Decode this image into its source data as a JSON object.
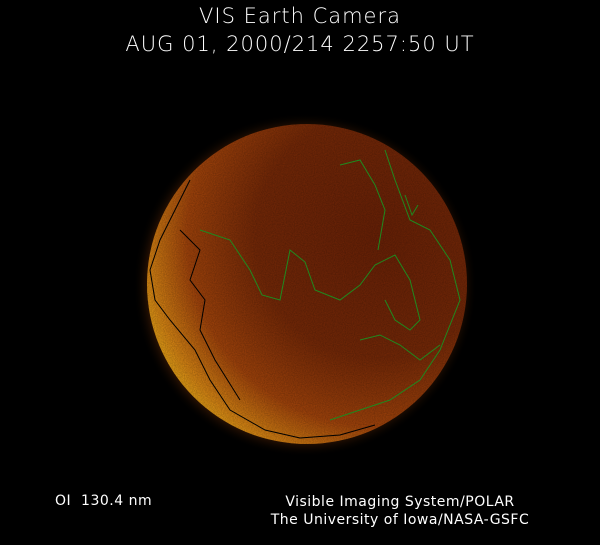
{
  "title": "VIS Earth Camera",
  "timestamp": "AUG 01, 2000/214 2257:50 UT",
  "band": "OI  130.4 nm",
  "credit_line1": "Visible Imaging System/POLAR",
  "credit_line2": "The University of Iowa/NASA-GSFC",
  "colors": {
    "background": "#000000",
    "disk_dark": "#5a1a04",
    "disk_mid": "#a8400a",
    "crescent": "#ffd21c",
    "coastline_day": "#1f8a1f",
    "coastline_night": "#000000"
  }
}
